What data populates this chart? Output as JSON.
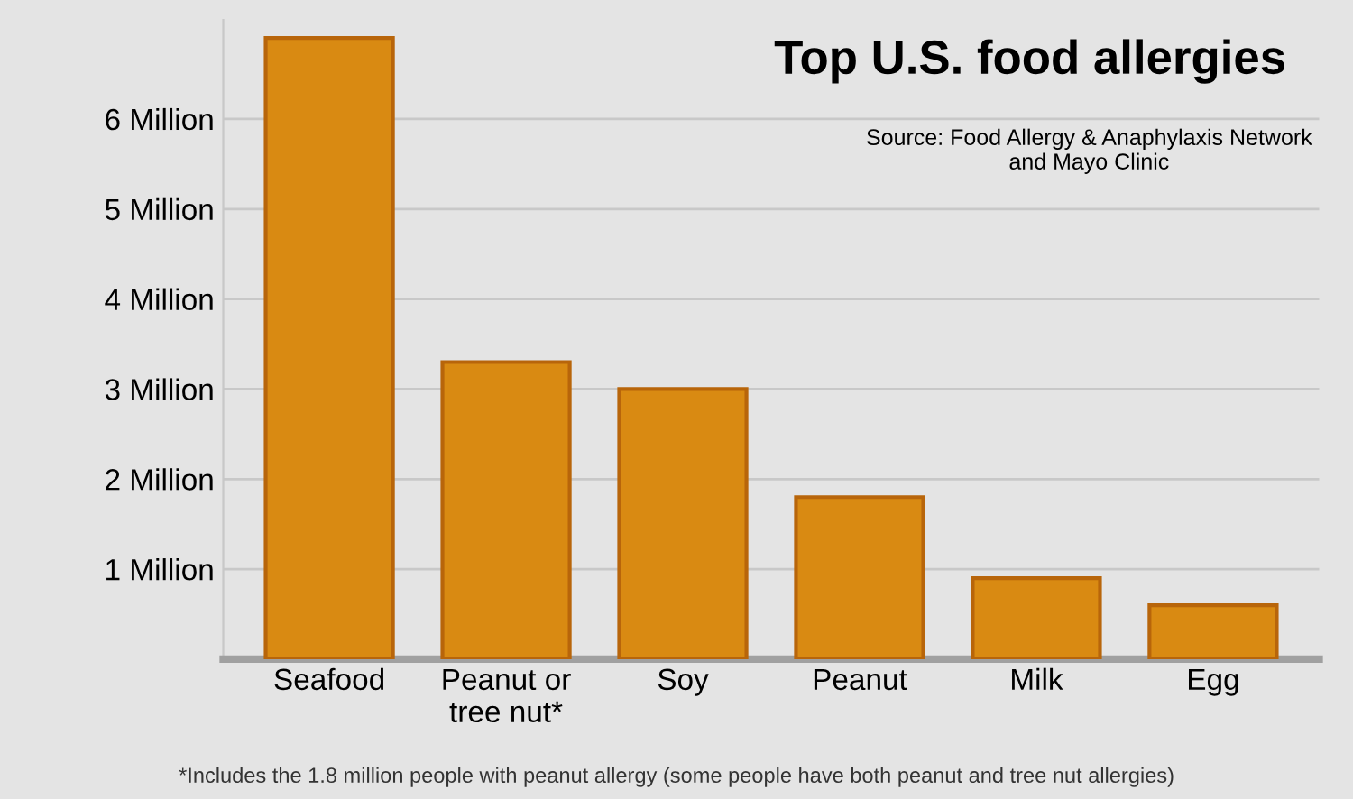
{
  "chart_data": {
    "type": "bar",
    "title": "Top U.S. food allergies",
    "categories": [
      "Seafood",
      "Peanut or\ntree nut*",
      "Soy",
      "Peanut",
      "Milk",
      "Egg"
    ],
    "values": [
      6.9,
      3.3,
      3.0,
      1.8,
      0.9,
      0.6
    ],
    "color": "#d98a12",
    "ylim": [
      0,
      7.1
    ],
    "yticks": [
      {
        "value": 1,
        "label": "1 Million"
      },
      {
        "value": 2,
        "label": "2 Million"
      },
      {
        "value": 3,
        "label": "3 Million"
      },
      {
        "value": 4,
        "label": "4 Million"
      },
      {
        "value": 5,
        "label": "5 Million"
      },
      {
        "value": 6,
        "label": "6 Million"
      }
    ],
    "grid": "y",
    "annotations": [
      "Source: Food Allergy & Anaphylaxis Network\nand Mayo Clinic",
      "*Includes the 1.8 million people with peanut allergy (some people have both peanut and tree nut allergies)"
    ]
  }
}
